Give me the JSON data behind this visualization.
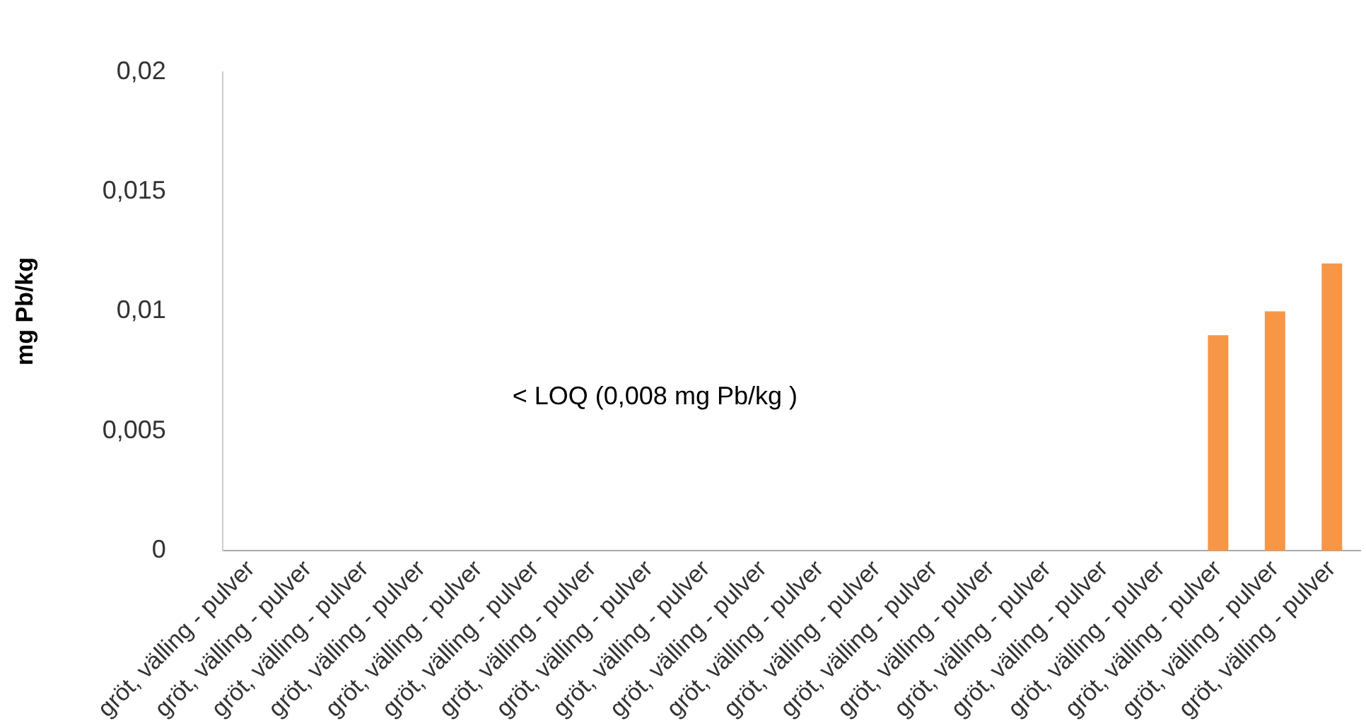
{
  "chart_data": {
    "type": "bar",
    "ylabel": "mg Pb/kg",
    "categories": [
      "gröt, välling - pulver",
      "gröt, välling - pulver",
      "gröt, välling - pulver",
      "gröt, välling - pulver",
      "gröt, välling - pulver",
      "gröt, välling - pulver",
      "gröt, välling - pulver",
      "gröt, välling - pulver",
      "gröt, välling - pulver",
      "gröt, välling - pulver",
      "gröt, välling - pulver",
      "gröt, välling - pulver",
      "gröt, välling - pulver",
      "gröt, välling - pulver",
      "gröt, välling - pulver",
      "gröt, välling - pulver",
      "gröt, välling - pulver",
      "gröt, välling - pulver",
      "gröt, välling - pulver",
      "gröt, välling - pulver"
    ],
    "values": [
      null,
      null,
      null,
      null,
      null,
      null,
      null,
      null,
      null,
      null,
      null,
      null,
      null,
      null,
      null,
      null,
      null,
      0.009,
      0.01,
      0.012
    ],
    "color": "#f79646",
    "ylim": [
      0,
      0.02
    ],
    "yticks": [
      0,
      {
        "value": 0.005,
        "label": "0,005"
      },
      {
        "value": 0.01,
        "label": "0,01"
      },
      {
        "value": 0.015,
        "label": "0,015"
      },
      {
        "value": 0.02,
        "label": "0,02"
      }
    ],
    "grid": false,
    "annotations": [
      "< LOQ (0,008 mg Pb/kg )"
    ]
  }
}
